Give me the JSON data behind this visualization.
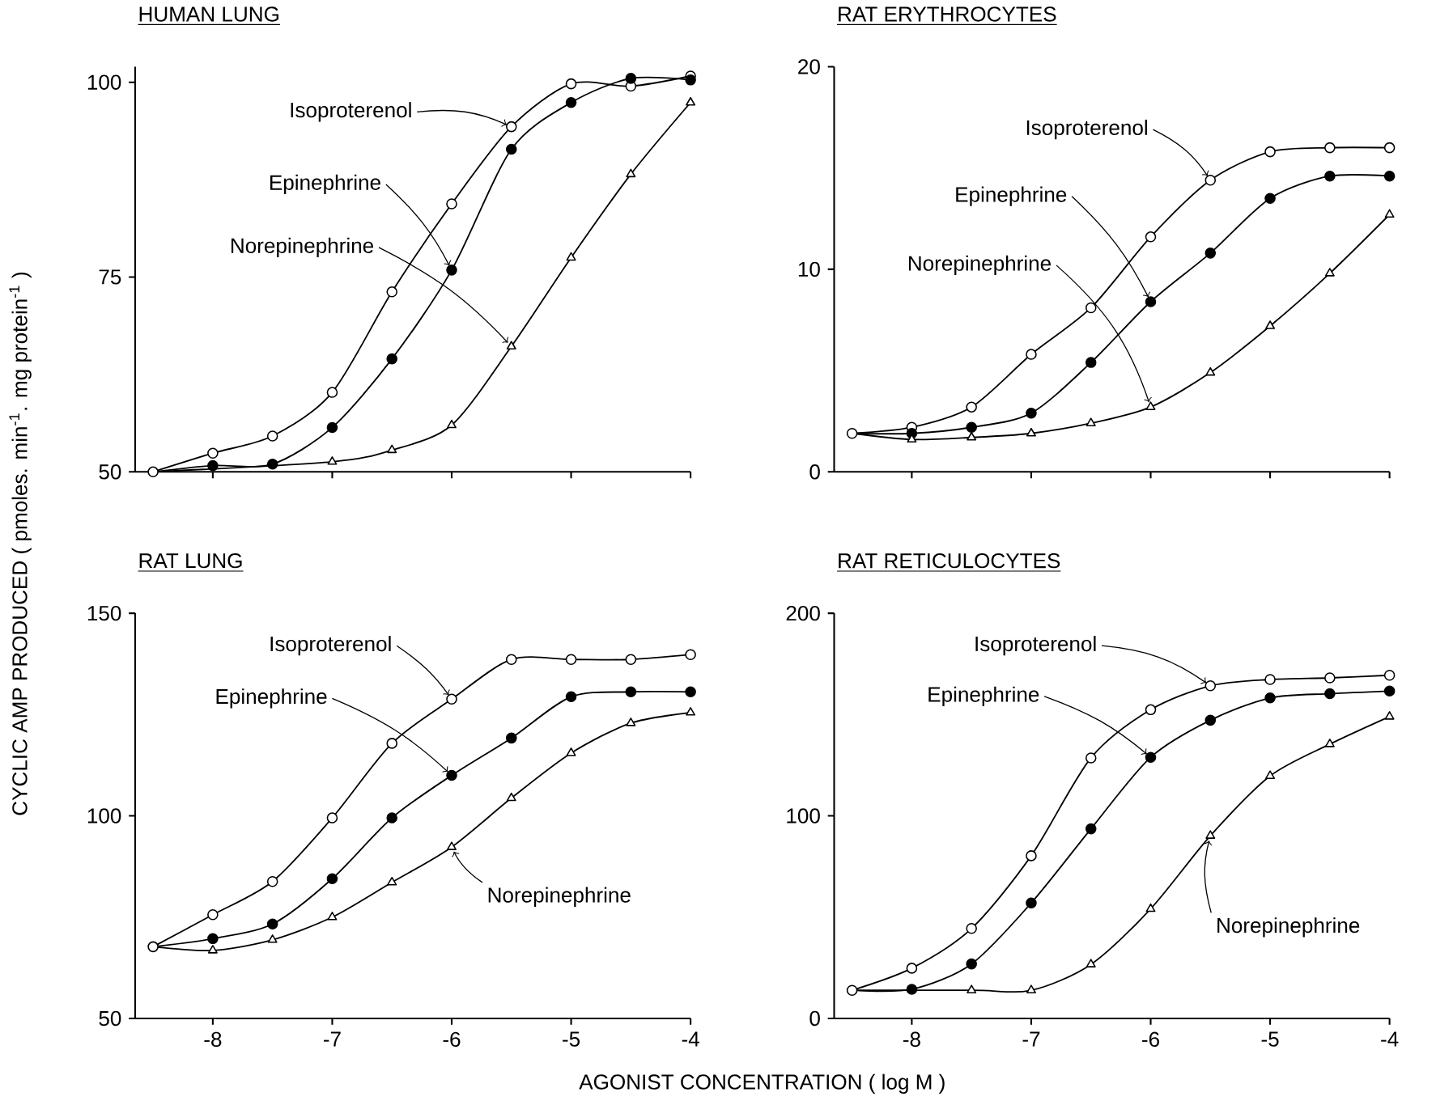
{
  "chart_data": [
    {
      "type": "line",
      "title": "HUMAN LUNG",
      "ylabel": "CYCLIC AMP PRODUCED ( pmoles. min$^{-1}$. mg protein$^{-1}$ )",
      "x": [
        -8.5,
        -8,
        -7.5,
        -7,
        -6.5,
        -6,
        -5.5,
        -5,
        -4.5,
        -4
      ],
      "xlim": [
        -8.65,
        -4
      ],
      "xticks": [
        -8,
        -7,
        -6,
        -5,
        -4
      ],
      "ylim": [
        50,
        102
      ],
      "yticks": [
        50,
        75,
        100
      ],
      "tick_labels": "y",
      "series": [
        {
          "name": "Isoproterenol",
          "color": "#000000",
          "marker": "circle",
          "values": [
            50,
            52.4,
            54.6,
            60.2,
            73.1,
            84.4,
            94.3,
            99.8,
            99.5,
            100.8
          ]
        },
        {
          "name": "Epinephrine",
          "color": "#000000",
          "marker": "circle",
          "values": [
            50,
            50.8,
            51,
            55.7,
            64.5,
            75.9,
            91.4,
            97.4,
            100.5,
            100.3
          ]
        },
        {
          "name": "Norepinephrine",
          "color": "#000000",
          "marker": "triangle",
          "x": [
            -8.5,
            -7,
            -6.5,
            -6,
            -5.5,
            -5,
            -4.5,
            -4
          ],
          "values": [
            50,
            51.3,
            52.8,
            56,
            66.1,
            77.5,
            88.2,
            97.4
          ]
        }
      ]
    },
    {
      "type": "line",
      "title": "RAT ERYTHROCYTES",
      "x": [
        -8.5,
        -8,
        -7.5,
        -7,
        -6.5,
        -6,
        -5.5,
        -5,
        -4.5,
        -4
      ],
      "xlim": [
        -8.65,
        -4
      ],
      "xticks": [
        -8,
        -7,
        -6,
        -5,
        -4
      ],
      "ylim": [
        0,
        20
      ],
      "yticks": [
        0,
        10,
        20
      ],
      "tick_labels": "y",
      "series": [
        {
          "name": "Isoproterenol",
          "color": "#000000",
          "marker": "circle",
          "values": [
            1.9,
            2.2,
            3.2,
            5.8,
            8.1,
            11.6,
            14.4,
            15.8,
            16.0,
            16.0
          ]
        },
        {
          "name": "Epinephrine",
          "color": "#000000",
          "marker": "circle",
          "values": [
            1.9,
            1.9,
            2.2,
            2.9,
            5.4,
            8.4,
            10.8,
            13.5,
            14.6,
            14.6
          ]
        },
        {
          "name": "Norepinephrine",
          "color": "#000000",
          "marker": "triangle",
          "values": [
            1.9,
            1.6,
            1.7,
            1.9,
            2.4,
            3.2,
            4.9,
            7.2,
            9.8,
            12.7
          ]
        }
      ]
    },
    {
      "type": "line",
      "title": "RAT LUNG",
      "xlabel": "AGONIST CONCENTRATION ( log M )",
      "x": [
        -8.5,
        -8,
        -7.5,
        -7,
        -6.5,
        -6,
        -5.5,
        -5,
        -4.5,
        -4
      ],
      "xlim": [
        -8.65,
        -4
      ],
      "xticks": [
        -8,
        -7,
        -6,
        -5,
        -4
      ],
      "ylim": [
        50,
        150
      ],
      "yticks": [
        50,
        100,
        150
      ],
      "series": [
        {
          "name": "Isoproterenol",
          "color": "#000000",
          "marker": "circle",
          "values": [
            67.7,
            75.6,
            83.8,
            99.5,
            117.9,
            128.8,
            138.6,
            138.6,
            138.6,
            139.8
          ]
        },
        {
          "name": "Epinephrine",
          "color": "#000000",
          "marker": "circle",
          "values": [
            67.7,
            69.7,
            73.3,
            84.5,
            99.5,
            110,
            119.2,
            129.4,
            130.6,
            130.6
          ]
        },
        {
          "name": "Norepinephrine",
          "color": "#000000",
          "marker": "triangle",
          "values": [
            67.7,
            66.8,
            69.4,
            75,
            83.6,
            92.3,
            104.4,
            115.5,
            122.9,
            125.5
          ]
        }
      ]
    },
    {
      "type": "line",
      "title": "RAT RETICULOCYTES",
      "x": [
        -8.5,
        -8,
        -7.5,
        -7,
        -6.5,
        -6,
        -5.5,
        -5,
        -4.5,
        -4
      ],
      "xlim": [
        -8.65,
        -4
      ],
      "xticks": [
        -8,
        -7,
        -6,
        -5,
        -4
      ],
      "ylim": [
        0,
        200
      ],
      "yticks": [
        0,
        100,
        200
      ],
      "series": [
        {
          "name": "Isoproterenol",
          "color": "#000000",
          "marker": "circle",
          "values": [
            13.9,
            24.8,
            44.4,
            80.3,
            128.6,
            152.4,
            164.2,
            167.3,
            168.1,
            169.4
          ]
        },
        {
          "name": "Epinephrine",
          "color": "#000000",
          "marker": "circle",
          "values": [
            13.9,
            14.4,
            26.9,
            57,
            93.6,
            128.9,
            147.2,
            158.2,
            160.3,
            161.6
          ]
        },
        {
          "name": "Norepinephrine",
          "color": "#000000",
          "marker": "triangle",
          "x": [
            -8.5,
            -7.5,
            -7,
            -6.5,
            -6,
            -5.5,
            -5,
            -4.5,
            -4
          ],
          "values": [
            13.9,
            13.9,
            13.9,
            26.7,
            54.1,
            90.2,
            119.7,
            135.4,
            149
          ]
        }
      ]
    }
  ]
}
